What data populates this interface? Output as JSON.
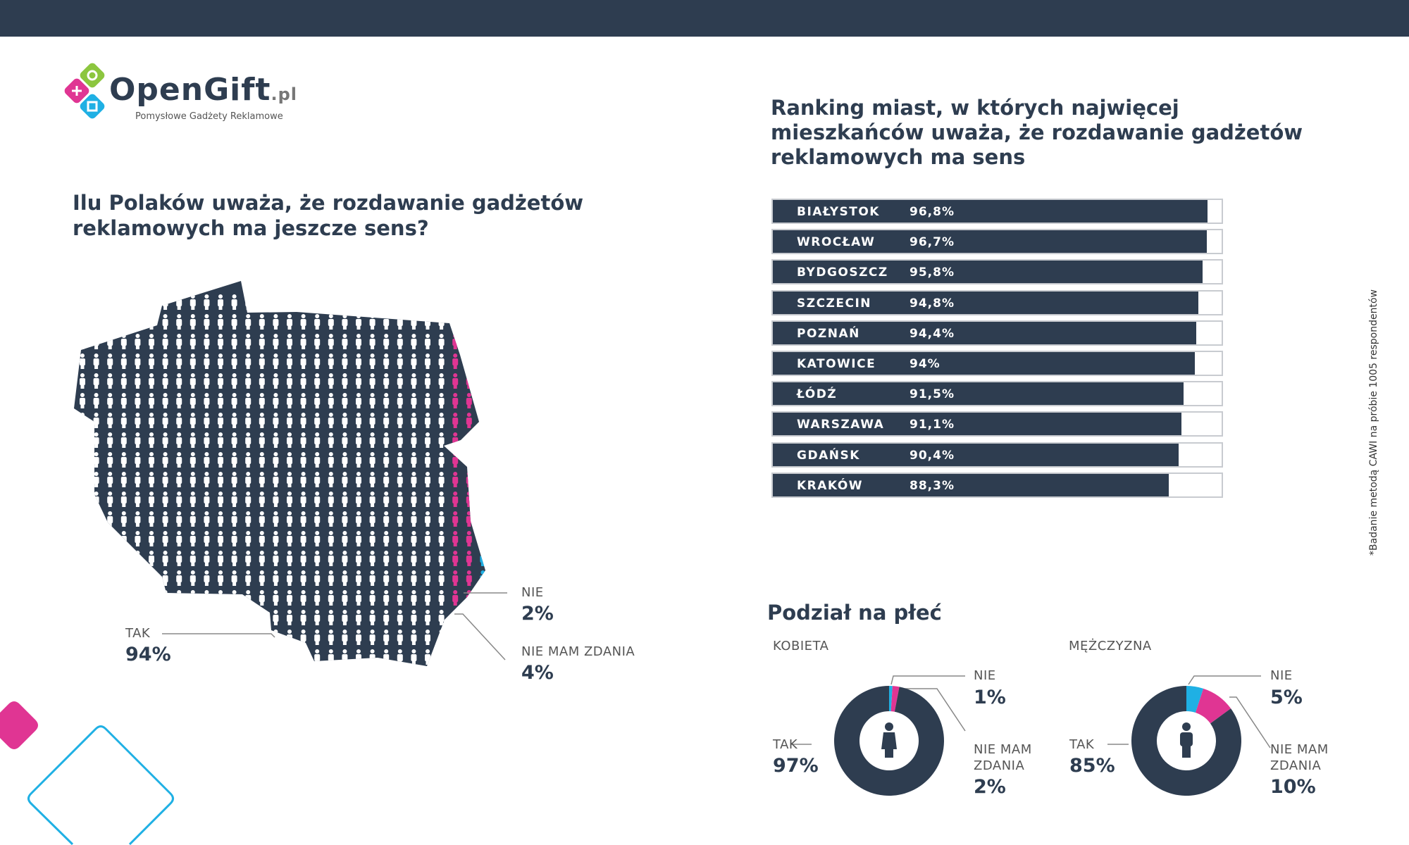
{
  "logo": {
    "name": "OpenGift",
    "tld": ".pl",
    "tagline": "Pomysłowe Gadżety Reklamowe"
  },
  "left": {
    "title_line1": "Ilu Polaków uważa, że rozdawanie gadżetów",
    "title_line2": "reklamowych ma jeszcze sens?",
    "labels": {
      "tak": "TAK",
      "tak_pct": "94%",
      "nie": "NIE",
      "nie_pct": "2%",
      "nmz": "NIE MAM ZDANIA",
      "nmz_pct": "4%"
    }
  },
  "ranking": {
    "title_line1": "Ranking miast, w których najwięcej",
    "title_line2": "mieszkańców uważa, że rozdawanie gadżetów",
    "title_line3": "reklamowych ma sens"
  },
  "gender": {
    "title": "Podział na płeć",
    "female": {
      "label": "KOBIETA",
      "tak": "TAK",
      "tak_pct": "97%",
      "nie": "NIE",
      "nie_pct": "1%",
      "nmz1": "NIE MAM",
      "nmz2": "ZDANIA",
      "nmz_pct": "2%"
    },
    "male": {
      "label": "MĘŻCZYZNA",
      "tak": "TAK",
      "tak_pct": "85%",
      "nie": "NIE",
      "nie_pct": "5%",
      "nmz1": "NIE MAM",
      "nmz2": "ZDANIA",
      "nmz_pct": "10%"
    }
  },
  "footnote": "*Badanie metodą CAWI na próbie 1005 respondentów",
  "colors": {
    "dark": "#2e3d50",
    "pink": "#e03593",
    "blue": "#1fb0e4",
    "green": "#8cc63f"
  },
  "chart_data": [
    {
      "type": "bar",
      "title": "Ranking miast, w których najwięcej mieszkańców uważa, że rozdawanie gadżetów reklamowych ma sens",
      "categories": [
        "BIAŁYSTOK",
        "WROCŁAW",
        "BYDGOSZCZ",
        "SZCZECIN",
        "POZNAŃ",
        "KATOWICE",
        "ŁÓDŹ",
        "WARSZAWA",
        "GDAŃSK",
        "KRAKÓW"
      ],
      "values": [
        96.8,
        96.7,
        95.8,
        94.8,
        94.4,
        94,
        91.5,
        91.1,
        90.4,
        88.3
      ],
      "labels": [
        "96,8%",
        "96,7%",
        "95,8%",
        "94,8%",
        "94,4%",
        "94%",
        "91,5%",
        "91,1%",
        "90,4%",
        "88,3%"
      ],
      "ylim": [
        0,
        100
      ]
    },
    {
      "type": "pie",
      "title": "Ilu Polaków uważa, że rozdawanie gadżetów reklamowych ma jeszcze sens?",
      "categories": [
        "TAK",
        "NIE",
        "NIE MAM ZDANIA"
      ],
      "values": [
        94,
        2,
        4
      ]
    },
    {
      "type": "pie",
      "title": "KOBIETA",
      "categories": [
        "TAK",
        "NIE",
        "NIE MAM ZDANIA"
      ],
      "values": [
        97,
        1,
        2
      ]
    },
    {
      "type": "pie",
      "title": "MĘŻCZYZNA",
      "categories": [
        "TAK",
        "NIE",
        "NIE MAM ZDANIA"
      ],
      "values": [
        85,
        5,
        10
      ]
    }
  ]
}
